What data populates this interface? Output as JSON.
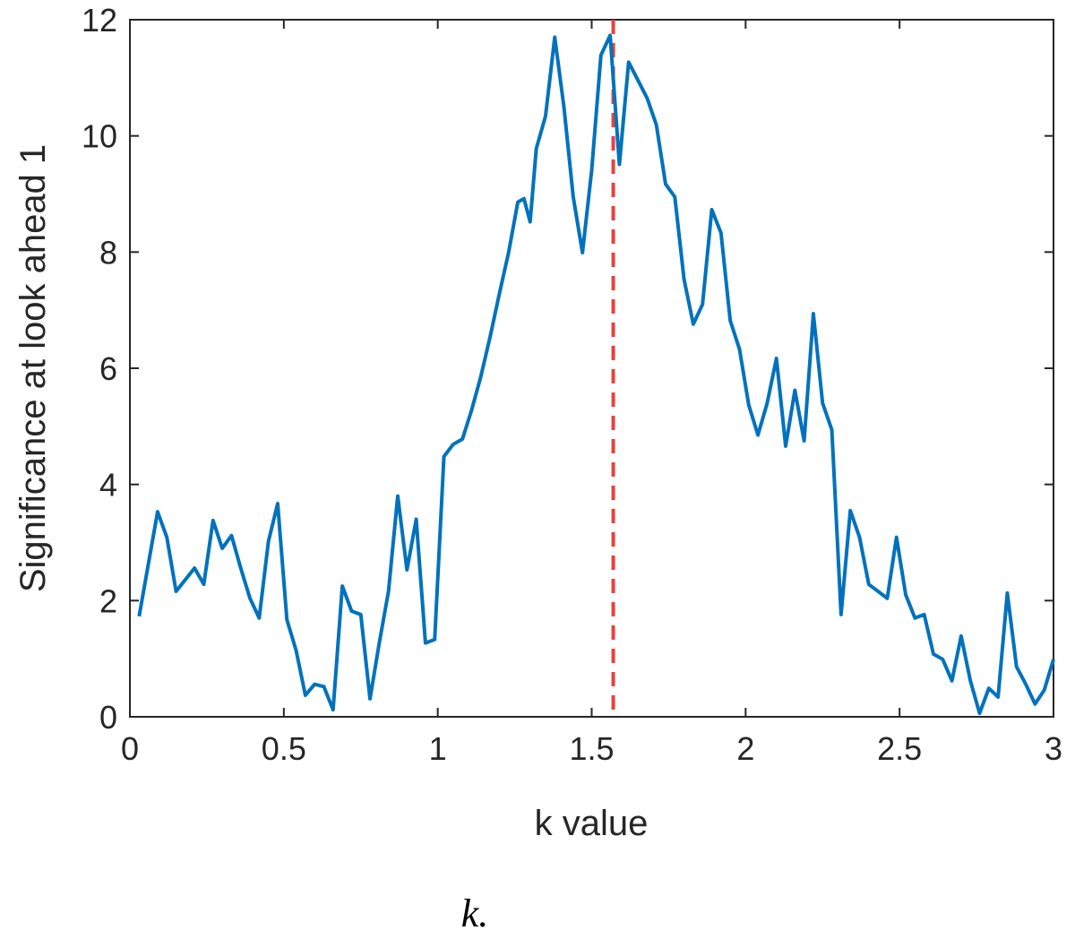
{
  "chart_data": {
    "type": "line",
    "xlabel": "k value",
    "ylabel": "Significance at look ahead 1",
    "caption": "k.",
    "x": [
      0.03,
      0.09,
      0.12,
      0.15,
      0.21,
      0.24,
      0.27,
      0.3,
      0.33,
      0.36,
      0.39,
      0.42,
      0.45,
      0.48,
      0.51,
      0.54,
      0.57,
      0.6,
      0.63,
      0.66,
      0.69,
      0.72,
      0.75,
      0.78,
      0.81,
      0.84,
      0.87,
      0.9,
      0.93,
      0.96,
      0.99,
      1.02,
      1.05,
      1.08,
      1.11,
      1.14,
      1.17,
      1.2,
      1.23,
      1.26,
      1.28,
      1.3,
      1.32,
      1.35,
      1.38,
      1.41,
      1.44,
      1.47,
      1.5,
      1.53,
      1.56,
      1.59,
      1.62,
      1.65,
      1.68,
      1.71,
      1.74,
      1.77,
      1.8,
      1.83,
      1.86,
      1.89,
      1.92,
      1.95,
      1.98,
      2.01,
      2.04,
      2.07,
      2.1,
      2.13,
      2.16,
      2.19,
      2.22,
      2.25,
      2.28,
      2.31,
      2.34,
      2.37,
      2.4,
      2.43,
      2.46,
      2.49,
      2.52,
      2.55,
      2.58,
      2.61,
      2.64,
      2.67,
      2.7,
      2.73,
      2.76,
      2.79,
      2.82,
      2.85,
      2.88,
      2.91,
      2.94,
      2.97,
      3.0
    ],
    "series": [
      {
        "color": "#0072bd",
        "values": [
          1.73,
          3.53,
          3.09,
          2.16,
          2.56,
          2.28,
          3.38,
          2.9,
          3.12,
          2.56,
          2.04,
          1.7,
          3.02,
          3.67,
          1.67,
          1.14,
          0.37,
          0.56,
          0.52,
          0.12,
          2.25,
          1.82,
          1.76,
          0.31,
          1.27,
          2.16,
          3.8,
          2.53,
          3.4,
          1.27,
          1.33,
          4.48,
          4.69,
          4.78,
          5.28,
          5.86,
          6.54,
          7.28,
          7.99,
          8.86,
          8.92,
          8.52,
          9.78,
          10.34,
          11.7,
          10.49,
          8.95,
          7.99,
          9.41,
          11.39,
          11.73,
          9.51,
          11.27,
          10.96,
          10.65,
          10.19,
          9.17,
          8.95,
          7.53,
          6.76,
          7.1,
          8.73,
          8.33,
          6.82,
          6.33,
          5.37,
          4.85,
          5.4,
          6.17,
          4.66,
          5.62,
          4.75,
          6.94,
          5.4,
          4.94,
          1.76,
          3.55,
          3.09,
          2.28,
          2.16,
          2.04,
          3.09,
          2.1,
          1.7,
          1.76,
          1.08,
          0.99,
          0.62,
          1.39,
          0.62,
          0.06,
          0.49,
          0.34,
          2.13,
          0.86,
          0.56,
          0.22,
          0.46,
          0.99
        ]
      }
    ],
    "vline": {
      "x": 1.57,
      "color": "#e8413c",
      "dashed": true
    },
    "xlim": [
      0,
      3
    ],
    "xticks": [
      0,
      0.5,
      1,
      1.5,
      2,
      2.5,
      3
    ],
    "ylim": [
      0,
      12
    ],
    "yticks": [
      0,
      2,
      4,
      6,
      8,
      10,
      12
    ],
    "grid": false
  }
}
